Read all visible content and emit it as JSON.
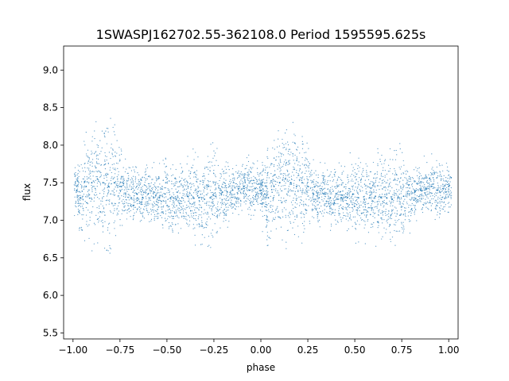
{
  "chart_data": {
    "type": "scatter",
    "title": "1SWASPJ162702.55-362108.0 Period 1595595.625s",
    "xlabel": "phase",
    "ylabel": "flux",
    "xlim": [
      -1.05,
      1.05
    ],
    "ylim": [
      5.42,
      9.32
    ],
    "xticks": [
      -1.0,
      -0.75,
      -0.5,
      -0.25,
      0.0,
      0.25,
      0.5,
      0.75,
      1.0
    ],
    "xtick_labels": [
      "−1.00",
      "−0.75",
      "−0.50",
      "−0.25",
      "0.00",
      "0.25",
      "0.50",
      "0.75",
      "1.00"
    ],
    "yticks": [
      5.5,
      6.0,
      6.5,
      7.0,
      7.5,
      8.0,
      8.5,
      9.0
    ],
    "ytick_labels": [
      "5.5",
      "6.0",
      "6.5",
      "7.0",
      "7.5",
      "8.0",
      "8.5",
      "9.0"
    ],
    "grid": false,
    "color": "#1f77b4",
    "series": [
      {
        "name": "",
        "x": [
          -0.98,
          -0.96,
          -0.93,
          -0.9,
          -0.87,
          -0.84,
          -0.81,
          -0.78,
          -0.75,
          -0.72,
          -0.69,
          -0.66,
          -0.63,
          -0.6,
          -0.57,
          -0.54,
          -0.51,
          -0.48,
          -0.45,
          -0.42,
          -0.39,
          -0.36,
          -0.33,
          -0.3,
          -0.27,
          -0.24,
          -0.21,
          -0.18,
          -0.15,
          -0.12,
          -0.09,
          -0.06,
          -0.03,
          0.0,
          0.02,
          0.04,
          0.07,
          0.1,
          0.13,
          0.16,
          0.19,
          0.22,
          0.25,
          0.28,
          0.31,
          0.34,
          0.37,
          0.4,
          0.43,
          0.46,
          0.49,
          0.52,
          0.55,
          0.58,
          0.61,
          0.64,
          0.67,
          0.7,
          0.73,
          0.76,
          0.79,
          0.82,
          0.85,
          0.88,
          0.91,
          0.94,
          0.97,
          1.0
        ],
        "y": [
          7.4,
          7.3,
          7.45,
          7.5,
          7.55,
          7.5,
          7.45,
          7.5,
          7.45,
          7.35,
          7.3,
          7.35,
          7.3,
          7.35,
          7.3,
          7.3,
          7.35,
          7.3,
          7.28,
          7.3,
          7.32,
          7.3,
          7.3,
          7.28,
          7.3,
          7.32,
          7.35,
          7.38,
          7.4,
          7.42,
          7.45,
          7.4,
          7.42,
          7.4,
          7.35,
          7.3,
          7.45,
          7.5,
          7.55,
          7.5,
          7.45,
          7.5,
          7.45,
          7.35,
          7.3,
          7.35,
          7.3,
          7.35,
          7.3,
          7.3,
          7.35,
          7.3,
          7.28,
          7.3,
          7.32,
          7.3,
          7.3,
          7.28,
          7.3,
          7.32,
          7.35,
          7.38,
          7.4,
          7.42,
          7.45,
          7.4,
          7.42,
          7.45
        ],
        "spread": [
          0.25,
          0.35,
          0.5,
          0.6,
          0.55,
          0.6,
          0.65,
          0.55,
          0.4,
          0.3,
          0.3,
          0.3,
          0.28,
          0.3,
          0.3,
          0.3,
          0.35,
          0.4,
          0.35,
          0.35,
          0.4,
          0.45,
          0.4,
          0.45,
          0.5,
          0.45,
          0.35,
          0.3,
          0.25,
          0.25,
          0.25,
          0.3,
          0.25,
          0.25,
          0.35,
          0.5,
          0.55,
          0.6,
          0.6,
          0.55,
          0.6,
          0.55,
          0.4,
          0.3,
          0.3,
          0.3,
          0.28,
          0.3,
          0.3,
          0.3,
          0.35,
          0.4,
          0.35,
          0.35,
          0.4,
          0.45,
          0.4,
          0.45,
          0.5,
          0.45,
          0.35,
          0.3,
          0.25,
          0.25,
          0.25,
          0.3,
          0.25,
          0.25
        ]
      }
    ]
  }
}
